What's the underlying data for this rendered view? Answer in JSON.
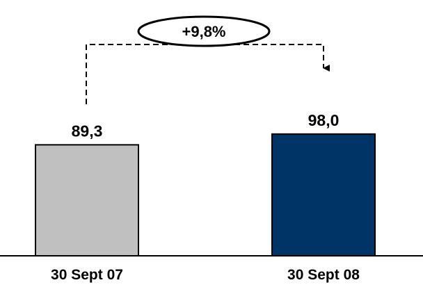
{
  "chart_data": {
    "type": "bar",
    "categories": [
      "30 Sept 07",
      "30 Sept 08"
    ],
    "values": [
      89.3,
      98.0
    ],
    "value_labels": [
      "89,3",
      "98,0"
    ],
    "bar_colors": [
      "#C0C0C0",
      "#003366"
    ],
    "change_label": "+9,8%",
    "title": "",
    "xlabel": "",
    "ylabel": "",
    "grid": false,
    "legend": "none"
  }
}
